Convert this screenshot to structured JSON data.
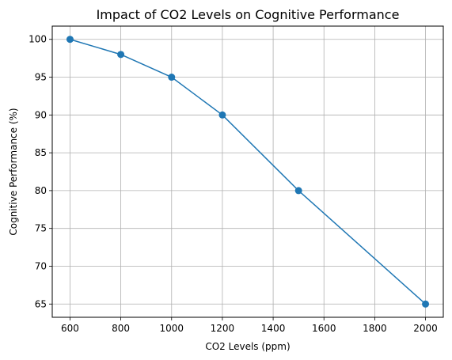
{
  "chart_data": {
    "type": "line",
    "title": "Impact of CO2 Levels on Cognitive Performance",
    "xlabel": "CO2 Levels (ppm)",
    "ylabel": "Cognitive Performance (%)",
    "x": [
      600,
      800,
      1000,
      1200,
      1500,
      2000
    ],
    "series": [
      {
        "values": [
          100,
          98,
          95,
          90,
          80,
          65
        ],
        "color": "#1f77b4",
        "marker": "circle"
      }
    ],
    "xlim": [
      530,
      2070
    ],
    "ylim": [
      63.25,
      101.75
    ],
    "xticks": [
      600,
      800,
      1000,
      1200,
      1400,
      1600,
      1800,
      2000
    ],
    "yticks": [
      65,
      70,
      75,
      80,
      85,
      90,
      95,
      100
    ],
    "grid": true
  }
}
